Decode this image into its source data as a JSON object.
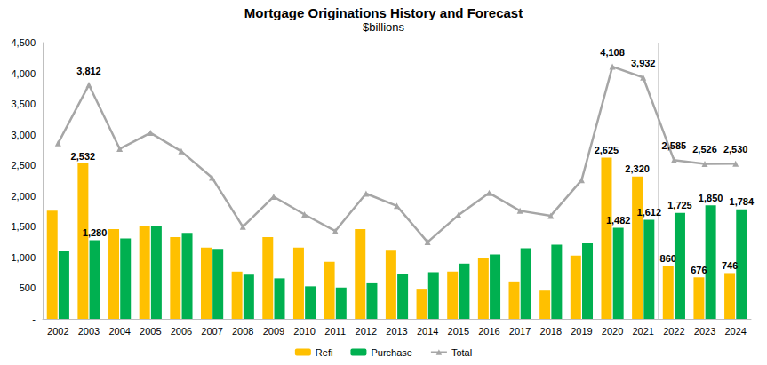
{
  "chart_data": {
    "type": "bar",
    "title": "Mortgage Originations History and Forecast",
    "subtitle": "$billions",
    "categories": [
      "2002",
      "2003",
      "2004",
      "2005",
      "2006",
      "2007",
      "2008",
      "2009",
      "2010",
      "2011",
      "2012",
      "2013",
      "2014",
      "2015",
      "2016",
      "2017",
      "2018",
      "2019",
      "2020",
      "2021",
      "2022",
      "2023",
      "2024"
    ],
    "series": [
      {
        "name": "Refi",
        "type": "bar",
        "color": "#FFC000",
        "values": [
          1760,
          2532,
          1460,
          1510,
          1330,
          1160,
          770,
          1330,
          1160,
          930,
          1460,
          1110,
          490,
          770,
          990,
          610,
          460,
          1030,
          2625,
          2320,
          860,
          676,
          746
        ],
        "value_labels": [
          null,
          "2,532",
          null,
          null,
          null,
          null,
          null,
          null,
          null,
          null,
          null,
          null,
          null,
          null,
          null,
          null,
          null,
          null,
          "2,625",
          "2,320",
          "860",
          "676",
          "746"
        ]
      },
      {
        "name": "Purchase",
        "type": "bar",
        "color": "#00B050",
        "values": [
          1100,
          1280,
          1310,
          1510,
          1400,
          1140,
          720,
          660,
          530,
          510,
          580,
          730,
          760,
          900,
          1050,
          1150,
          1210,
          1230,
          1482,
          1612,
          1725,
          1850,
          1784
        ],
        "value_labels": [
          null,
          "1,280",
          null,
          null,
          null,
          null,
          null,
          null,
          null,
          null,
          null,
          null,
          null,
          null,
          null,
          null,
          null,
          null,
          "1,482",
          "1,612",
          "1,725",
          "1,850",
          "1,784"
        ]
      },
      {
        "name": "Total",
        "type": "line",
        "color": "#A6A6A6",
        "marker": "triangle",
        "line_style": "solid",
        "values": [
          2860,
          3812,
          2770,
          3030,
          2730,
          2300,
          1500,
          1990,
          1700,
          1430,
          2040,
          1840,
          1250,
          1690,
          2050,
          1760,
          1680,
          2260,
          4108,
          3932,
          2585,
          2526,
          2530
        ],
        "value_labels": [
          null,
          "3,812",
          null,
          null,
          null,
          null,
          null,
          null,
          null,
          null,
          null,
          null,
          null,
          null,
          null,
          null,
          null,
          null,
          "4,108",
          "3,932",
          "2,585",
          "2,526",
          "2,530"
        ]
      }
    ],
    "ylim": [
      0,
      4500
    ],
    "yticks": [
      {
        "value": 0,
        "label": "-"
      },
      500,
      {
        "value": 1000,
        "label": "1,000"
      },
      {
        "value": 1500,
        "label": "1,500"
      },
      {
        "value": 2000,
        "label": "2,000"
      },
      {
        "value": 2500,
        "label": "2,500"
      },
      {
        "value": 3000,
        "label": "3,000"
      },
      {
        "value": 3500,
        "label": "3,500"
      },
      {
        "value": 4000,
        "label": "4,000"
      },
      {
        "value": 4500,
        "label": "4,500"
      }
    ],
    "grid": false,
    "legend": "bottom",
    "data_labels": true
  }
}
